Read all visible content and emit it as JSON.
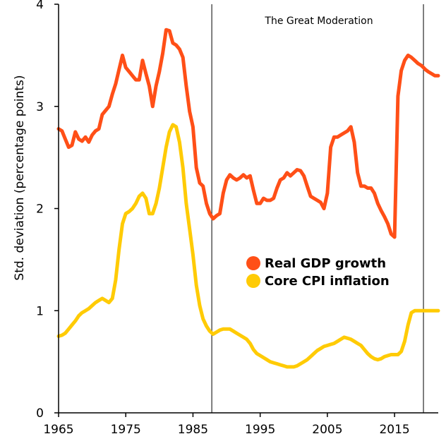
{
  "chart_data": {
    "type": "line",
    "title": "",
    "xlabel": "",
    "ylabel": "Std. deviation (percentage points)",
    "xlim": [
      1965,
      2021.5
    ],
    "ylim": [
      0,
      4
    ],
    "xticks": [
      1965,
      1975,
      1985,
      1995,
      2005,
      2015
    ],
    "yticks": [
      0,
      1,
      2,
      3,
      4
    ],
    "grid": false,
    "legend": "center-right",
    "colors": {
      "Real GDP growth": "#FF4F17",
      "Core CPI inflation": "#FFCB05"
    },
    "vlines": [
      1987.8,
      2019.3
    ],
    "annotation": "The Great Moderation",
    "series": [
      {
        "name": "Real GDP growth",
        "x": [
          1965.0,
          1965.5,
          1966.0,
          1966.5,
          1967.0,
          1967.5,
          1968.0,
          1968.5,
          1969.0,
          1969.5,
          1970.0,
          1970.5,
          1971.0,
          1971.5,
          1972.0,
          1972.5,
          1973.0,
          1973.5,
          1974.0,
          1974.5,
          1975.0,
          1975.5,
          1976.0,
          1976.5,
          1977.0,
          1977.5,
          1978.0,
          1978.5,
          1979.0,
          1979.5,
          1980.0,
          1980.5,
          1981.0,
          1981.5,
          1982.0,
          1982.5,
          1983.0,
          1983.5,
          1984.0,
          1984.5,
          1985.0,
          1985.5,
          1986.0,
          1986.5,
          1987.0,
          1987.5,
          1988.0,
          1988.5,
          1989.0,
          1989.5,
          1990.0,
          1990.5,
          1991.0,
          1991.5,
          1992.0,
          1992.5,
          1993.0,
          1993.5,
          1994.0,
          1994.5,
          1995.0,
          1995.5,
          1996.0,
          1996.5,
          1997.0,
          1997.5,
          1998.0,
          1998.5,
          1999.0,
          1999.5,
          2000.0,
          2000.5,
          2001.0,
          2001.5,
          2002.0,
          2002.5,
          2003.0,
          2003.5,
          2004.0,
          2004.5,
          2005.0,
          2005.5,
          2006.0,
          2006.5,
          2007.0,
          2007.5,
          2008.0,
          2008.5,
          2009.0,
          2009.5,
          2010.0,
          2010.5,
          2011.0,
          2011.5,
          2012.0,
          2012.5,
          2013.0,
          2013.5,
          2014.0,
          2014.5,
          2015.0,
          2015.5,
          2016.0,
          2016.5,
          2017.0,
          2017.5,
          2018.0,
          2018.5,
          2019.0,
          2019.3,
          2019.6,
          2020.0,
          2020.5,
          2021.0,
          2021.5
        ],
        "values": [
          2.78,
          2.76,
          2.68,
          2.6,
          2.62,
          2.75,
          2.68,
          2.66,
          2.7,
          2.65,
          2.72,
          2.76,
          2.78,
          2.92,
          2.96,
          3.0,
          3.12,
          3.22,
          3.36,
          3.5,
          3.38,
          3.34,
          3.3,
          3.26,
          3.26,
          3.45,
          3.32,
          3.2,
          3.0,
          3.2,
          3.34,
          3.52,
          3.75,
          3.74,
          3.62,
          3.6,
          3.56,
          3.48,
          3.2,
          2.95,
          2.8,
          2.4,
          2.25,
          2.22,
          2.05,
          1.95,
          1.9,
          1.93,
          1.95,
          2.15,
          2.28,
          2.33,
          2.3,
          2.28,
          2.3,
          2.33,
          2.3,
          2.32,
          2.18,
          2.05,
          2.05,
          2.1,
          2.08,
          2.08,
          2.1,
          2.2,
          2.28,
          2.3,
          2.35,
          2.32,
          2.35,
          2.38,
          2.37,
          2.32,
          2.22,
          2.12,
          2.1,
          2.08,
          2.06,
          2.0,
          2.15,
          2.6,
          2.7,
          2.7,
          2.72,
          2.74,
          2.76,
          2.8,
          2.65,
          2.35,
          2.22,
          2.22,
          2.2,
          2.2,
          2.15,
          2.05,
          1.98,
          1.92,
          1.85,
          1.75,
          1.72,
          3.1,
          3.35,
          3.45,
          3.5,
          3.48,
          3.45,
          3.42,
          3.4,
          3.38,
          3.36,
          3.34,
          3.32,
          3.3,
          3.3
        ],
        "note": ""
      },
      {
        "name": "Core CPI inflation",
        "x": [
          1965.0,
          1965.5,
          1966.0,
          1966.5,
          1967.0,
          1967.5,
          1968.0,
          1968.5,
          1969.0,
          1969.5,
          1970.0,
          1970.5,
          1971.0,
          1971.5,
          1972.0,
          1972.5,
          1973.0,
          1973.5,
          1974.0,
          1974.5,
          1975.0,
          1975.5,
          1976.0,
          1976.5,
          1977.0,
          1977.5,
          1978.0,
          1978.5,
          1979.0,
          1979.5,
          1980.0,
          1980.5,
          1981.0,
          1981.5,
          1982.0,
          1982.5,
          1983.0,
          1983.5,
          1984.0,
          1984.5,
          1985.0,
          1985.5,
          1986.0,
          1986.5,
          1987.0,
          1987.5,
          1988.0,
          1988.5,
          1989.0,
          1989.5,
          1990.0,
          1990.5,
          1991.0,
          1991.5,
          1992.0,
          1992.5,
          1993.0,
          1993.5,
          1994.0,
          1994.5,
          1995.0,
          1995.5,
          1996.0,
          1996.5,
          1997.0,
          1997.5,
          1998.0,
          1998.5,
          1999.0,
          1999.5,
          2000.0,
          2000.5,
          2001.0,
          2001.5,
          2002.0,
          2002.5,
          2003.0,
          2003.5,
          2004.0,
          2004.5,
          2005.0,
          2005.5,
          2006.0,
          2006.5,
          2007.0,
          2007.5,
          2008.0,
          2008.5,
          2009.0,
          2009.5,
          2010.0,
          2010.5,
          2011.0,
          2011.5,
          2012.0,
          2012.5,
          2013.0,
          2013.5,
          2014.0,
          2014.5,
          2015.0,
          2015.5,
          2016.0,
          2016.5,
          2017.0,
          2017.5,
          2018.0,
          2018.5,
          2019.0,
          2019.3,
          2019.6,
          2020.0,
          2020.5,
          2021.0,
          2021.5
        ],
        "values": [
          0.75,
          0.76,
          0.78,
          0.82,
          0.86,
          0.9,
          0.95,
          0.98,
          1.0,
          1.02,
          1.05,
          1.08,
          1.1,
          1.12,
          1.1,
          1.08,
          1.12,
          1.3,
          1.6,
          1.85,
          1.95,
          1.97,
          2.0,
          2.05,
          2.12,
          2.15,
          2.1,
          1.95,
          1.95,
          2.05,
          2.2,
          2.4,
          2.6,
          2.75,
          2.82,
          2.8,
          2.65,
          2.4,
          2.05,
          1.8,
          1.55,
          1.25,
          1.05,
          0.92,
          0.85,
          0.8,
          0.77,
          0.79,
          0.81,
          0.82,
          0.82,
          0.82,
          0.8,
          0.78,
          0.76,
          0.74,
          0.72,
          0.68,
          0.62,
          0.58,
          0.56,
          0.54,
          0.52,
          0.5,
          0.49,
          0.48,
          0.47,
          0.46,
          0.45,
          0.45,
          0.45,
          0.46,
          0.48,
          0.5,
          0.52,
          0.55,
          0.58,
          0.61,
          0.63,
          0.65,
          0.66,
          0.67,
          0.68,
          0.7,
          0.72,
          0.74,
          0.73,
          0.72,
          0.7,
          0.68,
          0.66,
          0.62,
          0.58,
          0.55,
          0.53,
          0.52,
          0.53,
          0.55,
          0.56,
          0.57,
          0.57,
          0.57,
          0.6,
          0.7,
          0.86,
          0.98,
          1.0,
          1.0,
          1.0,
          1.0,
          1.0,
          1.0,
          1.0,
          1.0,
          1.0
        ],
        "note": ""
      }
    ]
  }
}
